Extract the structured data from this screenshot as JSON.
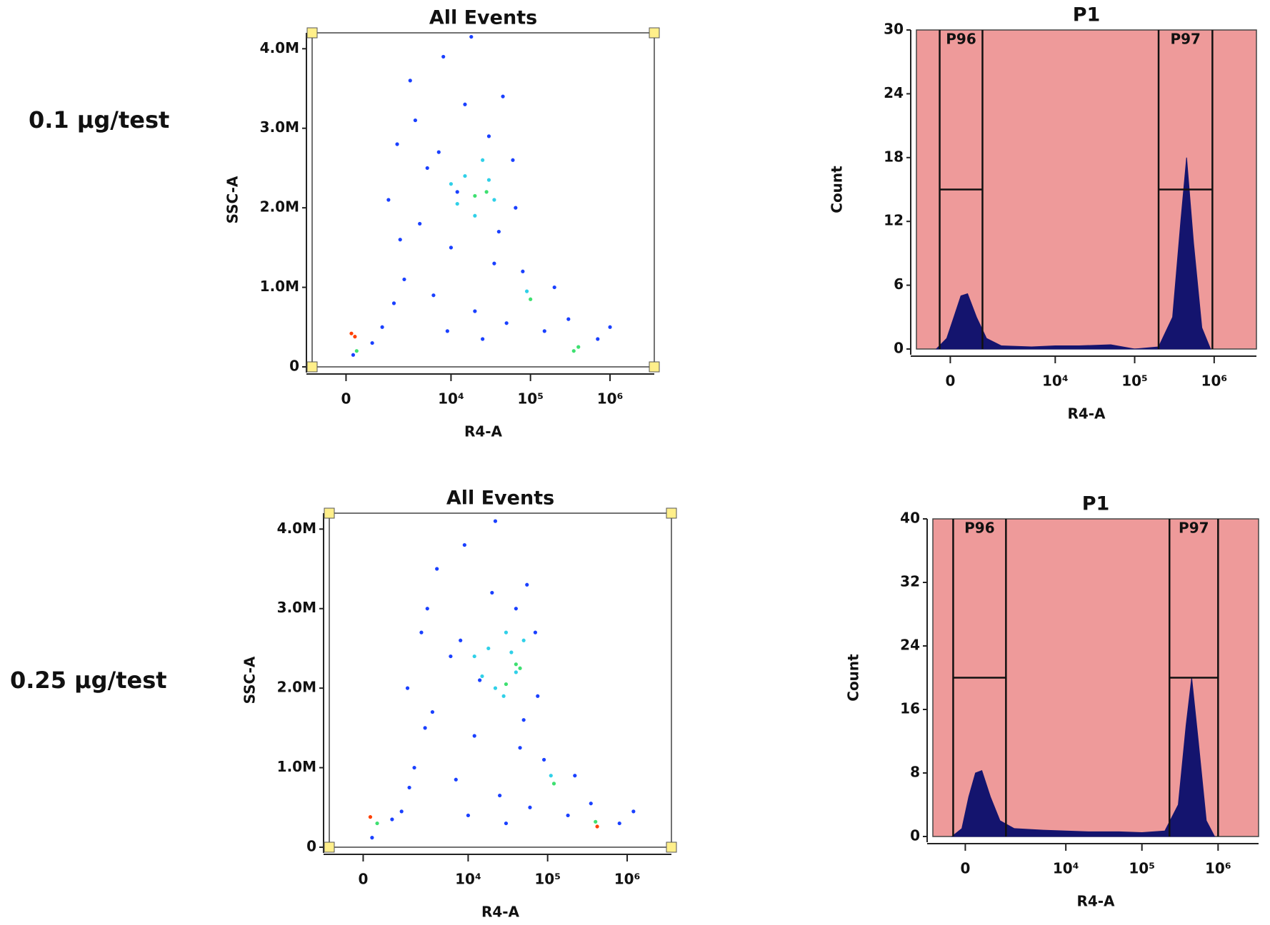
{
  "panels": [
    "0.1 μg/test",
    "0.25 μg/test"
  ],
  "chart_data": [
    {
      "type": "scatter",
      "title": "All Events",
      "x_label": "R4-A",
      "y_label": "SSC-A",
      "xscale": "asinh",
      "xlim": [
        -1100,
        3600000
      ],
      "ylim": [
        0,
        4200000
      ],
      "xticks": [
        0,
        {
          "value": 10000,
          "label": "10⁴"
        },
        {
          "value": 100000,
          "label": "10⁵"
        },
        {
          "value": 1000000,
          "label": "10⁶"
        }
      ],
      "yticks": [
        0,
        {
          "value": 1000000,
          "label": "1.0M"
        },
        {
          "value": 2000000,
          "label": "2.0M"
        },
        {
          "value": 3000000,
          "label": "3.0M"
        },
        {
          "value": 4000000,
          "label": "4.0M"
        }
      ],
      "series": [
        {
          "color": "#1a40ff",
          "x": [
            3000,
            8000,
            15000,
            2000,
            5000,
            30000,
            60000,
            1500,
            4000,
            10000,
            40000,
            80000,
            2500,
            6000,
            20000,
            50000,
            150000,
            1200,
            800,
            25000,
            300000,
            700000,
            12000,
            3500,
            45000,
            200000,
            9000,
            1000000,
            18000,
            200,
            7000,
            35000,
            2200,
            65000,
            1800
          ],
          "values": [
            3600000,
            3900000,
            3300000,
            2800000,
            2500000,
            2900000,
            2600000,
            2100000,
            1800000,
            1500000,
            1700000,
            1200000,
            1100000,
            900000,
            700000,
            550000,
            450000,
            500000,
            300000,
            350000,
            600000,
            350000,
            2200000,
            3100000,
            3400000,
            1000000,
            450000,
            500000,
            4150000,
            150000,
            2700000,
            1300000,
            1600000,
            2000000,
            800000
          ]
        },
        {
          "color": "#30d0e8",
          "x": [
            15000,
            25000,
            35000,
            10000,
            20000,
            90000,
            30000,
            12000
          ],
          "values": [
            2400000,
            2600000,
            2100000,
            2300000,
            1900000,
            950000,
            2350000,
            2050000
          ]
        },
        {
          "color": "#3ee070",
          "x": [
            28000,
            100000,
            400000,
            300,
            20000,
            350000
          ],
          "values": [
            2200000,
            850000,
            250000,
            200000,
            2150000,
            200000
          ]
        },
        {
          "color": "#ff4000",
          "x": [
            150,
            250
          ],
          "values": [
            420000,
            380000
          ]
        }
      ]
    },
    {
      "type": "area",
      "title": "P1",
      "x_label": "R4-A",
      "y_label": "Count",
      "xscale": "asinh",
      "background": "#ee9a9a",
      "color": "#14146e",
      "xlim": [
        -1100,
        3400000
      ],
      "ylim": [
        0,
        30
      ],
      "xticks": [
        0,
        {
          "value": 10000,
          "label": "10⁴"
        },
        {
          "value": 100000,
          "label": "10⁵"
        },
        {
          "value": 1000000,
          "label": "10⁶"
        }
      ],
      "yticks": [
        0,
        6,
        12,
        18,
        24,
        30
      ],
      "x": [
        -400,
        -100,
        100,
        300,
        500,
        800,
        1200,
        2000,
        5000,
        10000,
        20000,
        50000,
        100000,
        200000,
        300000,
        380000,
        450000,
        550000,
        700000,
        900000
      ],
      "values": [
        0,
        1,
        3,
        5,
        5.2,
        3,
        1,
        0.3,
        0.2,
        0.3,
        0.3,
        0.4,
        0,
        0.2,
        3,
        12,
        18,
        10,
        2,
        0
      ],
      "gates": [
        {
          "name": "P96",
          "range": [
            -300,
            1030
          ],
          "level": 15
        },
        {
          "name": "P97",
          "range": [
            200000,
            950000
          ],
          "level": 15
        }
      ]
    },
    {
      "type": "scatter",
      "title": "All Events",
      "x_label": "R4-A",
      "y_label": "SSC-A",
      "xscale": "asinh",
      "xlim": [
        -1100,
        3600000
      ],
      "ylim": [
        0,
        4200000
      ],
      "xticks": [
        0,
        {
          "value": 10000,
          "label": "10⁴"
        },
        {
          "value": 100000,
          "label": "10⁵"
        },
        {
          "value": 1000000,
          "label": "10⁶"
        }
      ],
      "yticks": [
        0,
        {
          "value": 1000000,
          "label": "1.0M"
        },
        {
          "value": 2000000,
          "label": "2.0M"
        },
        {
          "value": 3000000,
          "label": "3.0M"
        },
        {
          "value": 4000000,
          "label": "4.0M"
        }
      ],
      "series": [
        {
          "color": "#1a40ff",
          "x": [
            4000,
            9000,
            20000,
            2500,
            6000,
            40000,
            70000,
            1600,
            3500,
            12000,
            50000,
            90000,
            2000,
            7000,
            25000,
            60000,
            180000,
            1300,
            900,
            30000,
            350000,
            800000,
            14000,
            3000,
            55000,
            220000,
            10000,
            1200000,
            22000,
            250,
            8000,
            45000,
            2800,
            75000,
            1700
          ],
          "values": [
            3500000,
            3800000,
            3200000,
            2700000,
            2400000,
            3000000,
            2700000,
            2000000,
            1700000,
            1400000,
            1600000,
            1100000,
            1000000,
            850000,
            650000,
            500000,
            400000,
            450000,
            350000,
            300000,
            550000,
            300000,
            2100000,
            3000000,
            3300000,
            900000,
            400000,
            450000,
            4100000,
            120000,
            2600000,
            1250000,
            1500000,
            1900000,
            750000
          ]
        },
        {
          "color": "#30d0e8",
          "x": [
            18000,
            30000,
            40000,
            12000,
            22000,
            110000,
            35000,
            15000,
            28000,
            50000
          ],
          "values": [
            2500000,
            2700000,
            2200000,
            2400000,
            2000000,
            900000,
            2450000,
            2150000,
            1900000,
            2600000
          ]
        },
        {
          "color": "#3ee070",
          "x": [
            40000,
            120000,
            30000,
            400,
            45000,
            400000
          ],
          "values": [
            2300000,
            800000,
            2050000,
            300000,
            2250000,
            320000
          ]
        },
        {
          "color": "#ff4000",
          "x": [
            200,
            420000
          ],
          "values": [
            380000,
            260000
          ]
        }
      ]
    },
    {
      "type": "area",
      "title": "P1",
      "x_label": "R4-A",
      "y_label": "Count",
      "xscale": "asinh",
      "background": "#ee9a9a",
      "color": "#14146e",
      "xlim": [
        -1100,
        3400000
      ],
      "ylim": [
        0,
        40
      ],
      "xticks": [
        0,
        {
          "value": 10000,
          "label": "10⁴"
        },
        {
          "value": 100000,
          "label": "10⁵"
        },
        {
          "value": 1000000,
          "label": "10⁶"
        }
      ],
      "yticks": [
        0,
        8,
        16,
        24,
        32,
        40
      ],
      "x": [
        -400,
        -100,
        100,
        300,
        500,
        800,
        1200,
        2000,
        5000,
        10000,
        20000,
        50000,
        100000,
        200000,
        300000,
        380000,
        450000,
        550000,
        700000,
        900000
      ],
      "values": [
        0,
        1,
        5,
        8,
        8.3,
        5,
        2,
        1,
        0.8,
        0.7,
        0.6,
        0.6,
        0.5,
        0.7,
        4,
        14,
        20,
        12,
        2,
        0
      ],
      "gates": [
        {
          "name": "P96",
          "range": [
            -360,
            1500
          ],
          "level": 20
        },
        {
          "name": "P97",
          "range": [
            230000,
            1000000
          ],
          "level": 20
        }
      ]
    }
  ]
}
